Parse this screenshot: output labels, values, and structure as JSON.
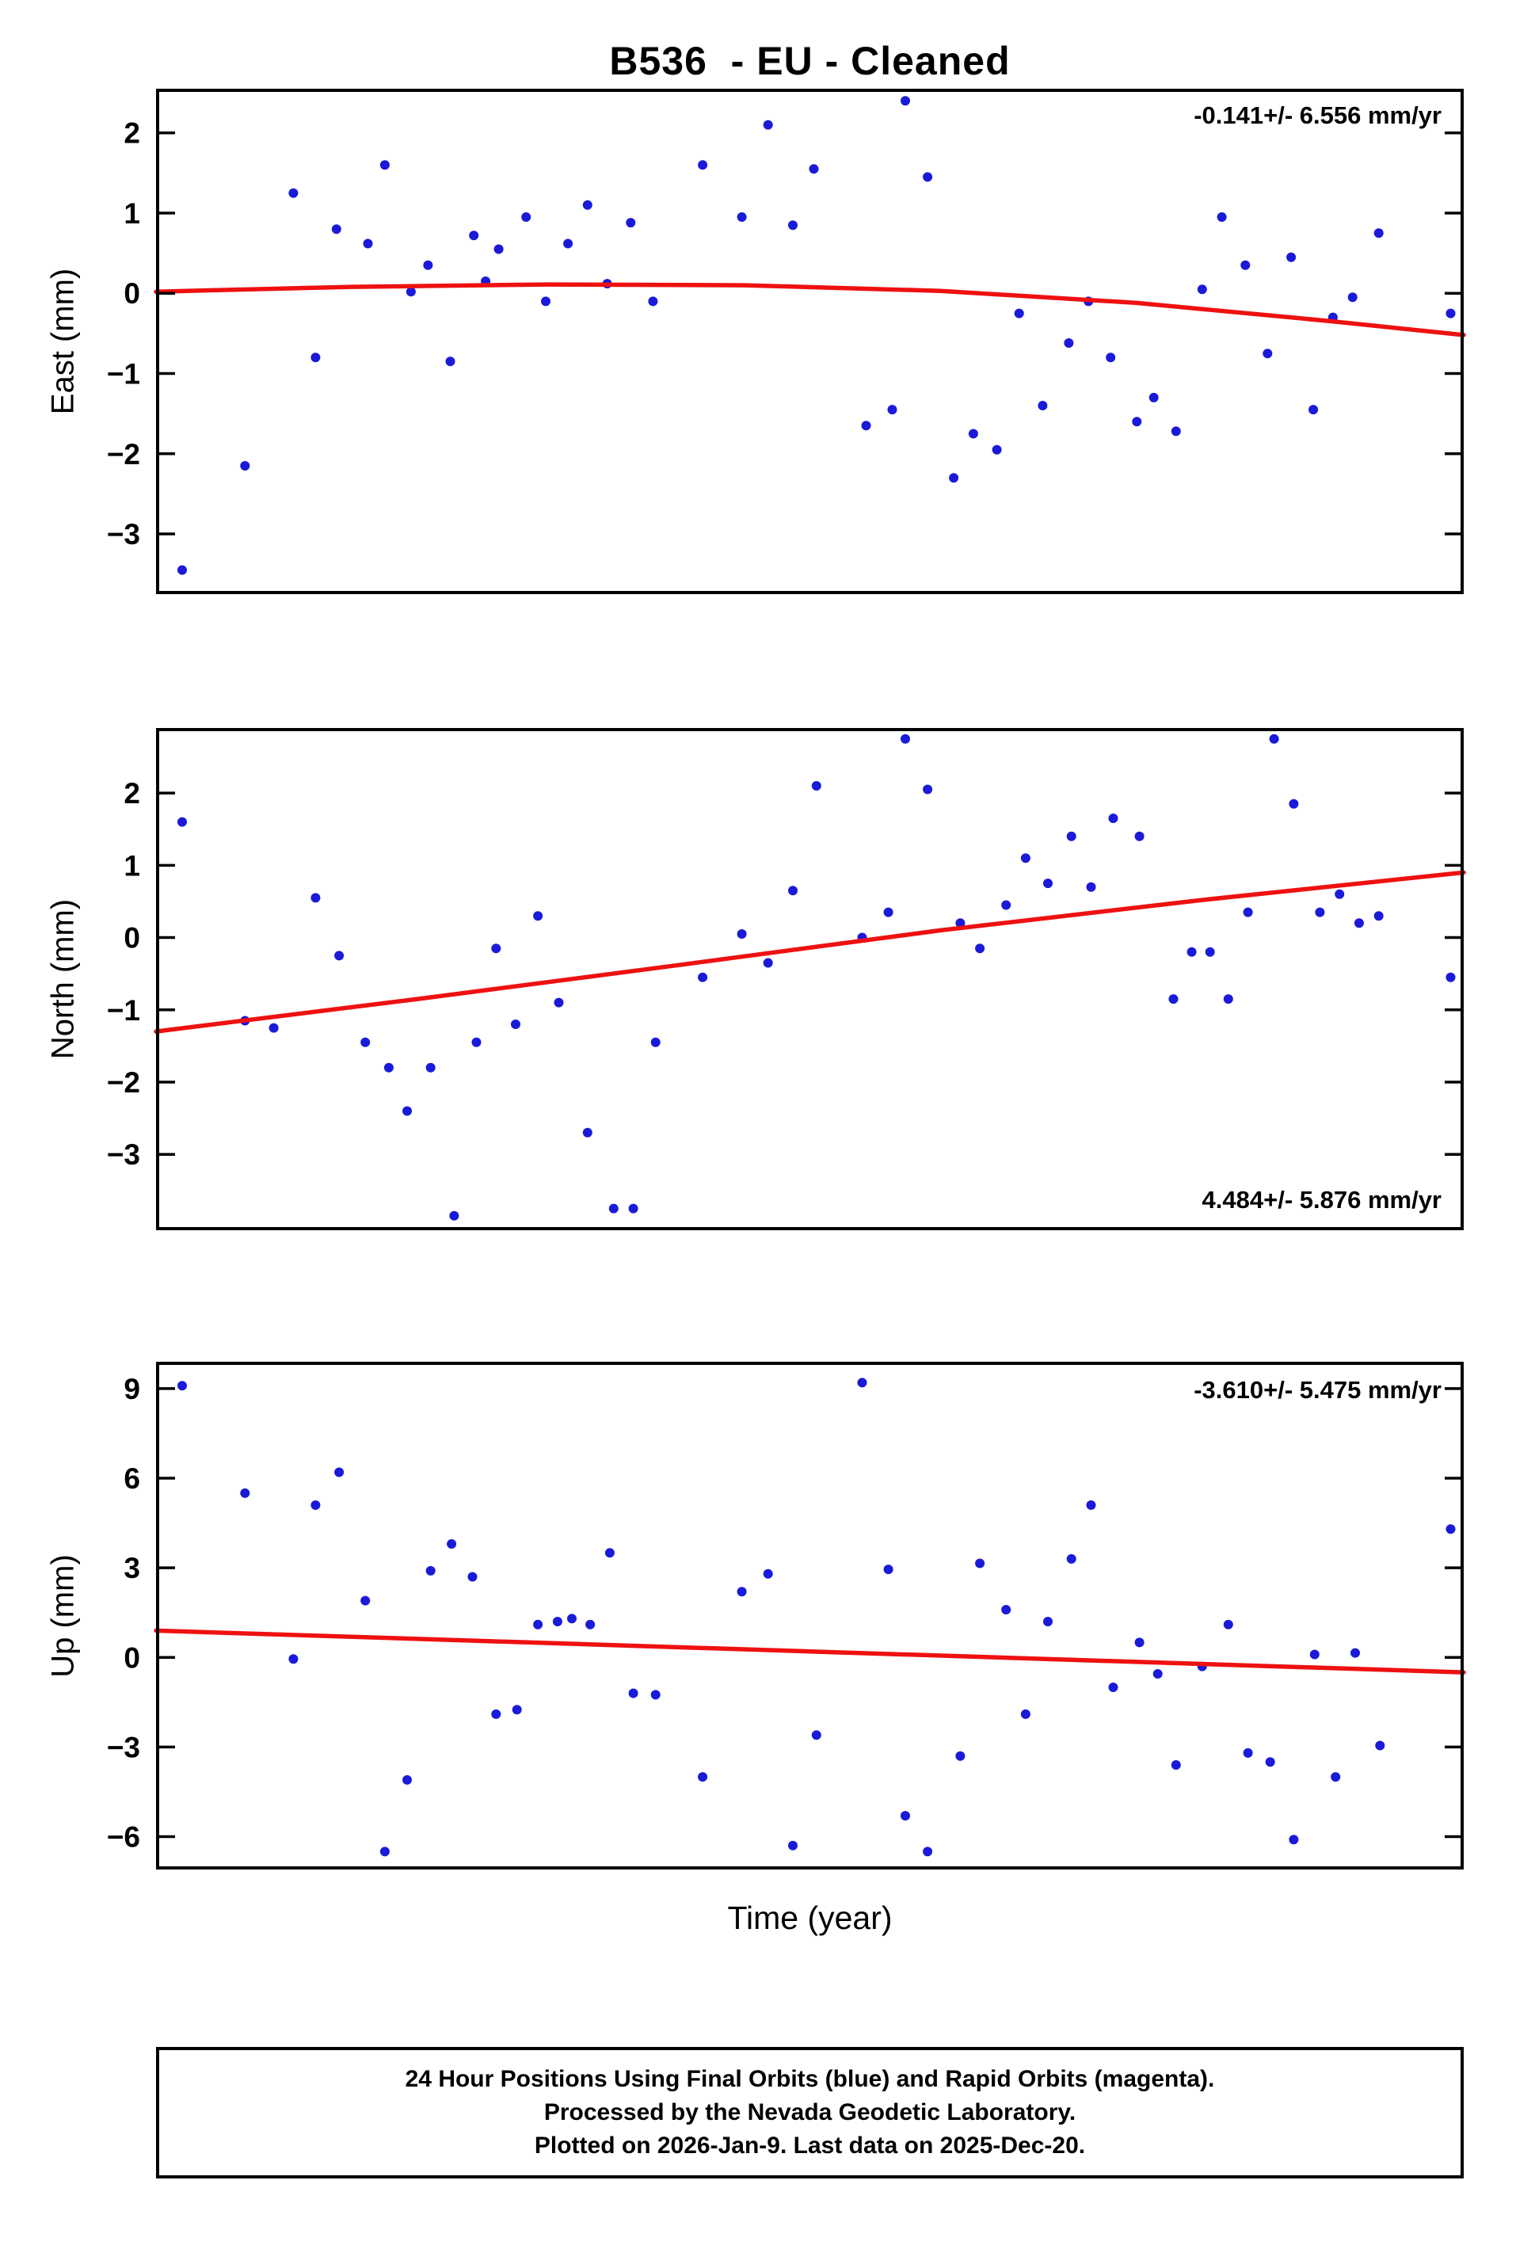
{
  "title": "B536  - EU - Cleaned",
  "xlabel": "Time (year)",
  "footer": {
    "line1": "24 Hour Positions Using Final Orbits (blue) and Rapid Orbits (magenta).",
    "line2": "Processed by the Nevada Geodetic Laboratory.",
    "line3": "Plotted on 2026-Jan-9. Last data on 2025-Dec-20."
  },
  "colors": {
    "points": "#1a1ad9",
    "trend": "#ee1111",
    "frame": "#000000",
    "text": "#000000"
  },
  "chart_data": [
    {
      "type": "scatter",
      "name": "east",
      "ylabel": "East (mm)",
      "annotation": "-0.141+/- 6.556 mm/yr",
      "annotation_pos": "top-right",
      "ylim": [
        -3.75,
        2.55
      ],
      "yticks": [
        2,
        1,
        0,
        -1,
        -2,
        -3
      ],
      "ytick_labels": [
        "2",
        "1",
        "0",
        "−1",
        "−2",
        "−3"
      ],
      "xticks": [],
      "points": [
        [
          0.02,
          -3.45
        ],
        [
          0.068,
          -2.15
        ],
        [
          0.105,
          1.25
        ],
        [
          0.122,
          -0.8
        ],
        [
          0.138,
          0.8
        ],
        [
          0.162,
          0.62
        ],
        [
          0.175,
          1.6
        ],
        [
          0.195,
          0.02
        ],
        [
          0.208,
          0.35
        ],
        [
          0.225,
          -0.85
        ],
        [
          0.243,
          0.72
        ],
        [
          0.252,
          0.15
        ],
        [
          0.262,
          0.55
        ],
        [
          0.283,
          0.95
        ],
        [
          0.298,
          -0.1
        ],
        [
          0.315,
          0.62
        ],
        [
          0.33,
          1.1
        ],
        [
          0.345,
          0.12
        ],
        [
          0.363,
          0.88
        ],
        [
          0.38,
          -0.1
        ],
        [
          0.418,
          1.6
        ],
        [
          0.448,
          0.95
        ],
        [
          0.468,
          2.1
        ],
        [
          0.487,
          0.85
        ],
        [
          0.503,
          1.55
        ],
        [
          0.543,
          -1.65
        ],
        [
          0.563,
          -1.45
        ],
        [
          0.573,
          2.4
        ],
        [
          0.59,
          1.45
        ],
        [
          0.61,
          -2.3
        ],
        [
          0.625,
          -1.75
        ],
        [
          0.643,
          -1.95
        ],
        [
          0.66,
          -0.25
        ],
        [
          0.678,
          -1.4
        ],
        [
          0.698,
          -0.62
        ],
        [
          0.713,
          -0.1
        ],
        [
          0.73,
          -0.8
        ],
        [
          0.75,
          -1.6
        ],
        [
          0.763,
          -1.3
        ],
        [
          0.78,
          -1.72
        ],
        [
          0.8,
          0.05
        ],
        [
          0.815,
          0.95
        ],
        [
          0.833,
          0.35
        ],
        [
          0.85,
          -0.75
        ],
        [
          0.868,
          0.45
        ],
        [
          0.885,
          -1.45
        ],
        [
          0.9,
          -0.3
        ],
        [
          0.915,
          -0.05
        ],
        [
          0.935,
          0.75
        ],
        [
          0.99,
          -0.25
        ]
      ],
      "trend": [
        [
          0.0,
          0.02
        ],
        [
          0.15,
          0.08
        ],
        [
          0.3,
          0.11
        ],
        [
          0.45,
          0.1
        ],
        [
          0.6,
          0.03
        ],
        [
          0.75,
          -0.12
        ],
        [
          0.9,
          -0.35
        ],
        [
          1.0,
          -0.52
        ]
      ]
    },
    {
      "type": "scatter",
      "name": "north",
      "ylabel": "North (mm)",
      "annotation": "4.484+/- 5.876 mm/yr",
      "annotation_pos": "bottom-right",
      "ylim": [
        -4.05,
        2.9
      ],
      "yticks": [
        2,
        1,
        0,
        -1,
        -2,
        -3
      ],
      "ytick_labels": [
        "2",
        "1",
        "0",
        "−1",
        "−2",
        "−3"
      ],
      "xticks": [],
      "points": [
        [
          0.02,
          1.6
        ],
        [
          0.068,
          -1.15
        ],
        [
          0.09,
          -1.25
        ],
        [
          0.122,
          0.55
        ],
        [
          0.14,
          -0.25
        ],
        [
          0.16,
          -1.45
        ],
        [
          0.178,
          -1.8
        ],
        [
          0.192,
          -2.4
        ],
        [
          0.21,
          -1.8
        ],
        [
          0.228,
          -3.85
        ],
        [
          0.245,
          -1.45
        ],
        [
          0.26,
          -0.15
        ],
        [
          0.275,
          -1.2
        ],
        [
          0.292,
          0.3
        ],
        [
          0.308,
          -0.9
        ],
        [
          0.33,
          -2.7
        ],
        [
          0.35,
          -3.75
        ],
        [
          0.365,
          -3.75
        ],
        [
          0.382,
          -1.45
        ],
        [
          0.418,
          -0.55
        ],
        [
          0.448,
          0.05
        ],
        [
          0.468,
          -0.35
        ],
        [
          0.487,
          0.65
        ],
        [
          0.505,
          2.1
        ],
        [
          0.54,
          0.0
        ],
        [
          0.56,
          0.35
        ],
        [
          0.573,
          2.75
        ],
        [
          0.59,
          2.05
        ],
        [
          0.615,
          0.2
        ],
        [
          0.63,
          -0.15
        ],
        [
          0.65,
          0.45
        ],
        [
          0.665,
          1.1
        ],
        [
          0.682,
          0.75
        ],
        [
          0.7,
          1.4
        ],
        [
          0.715,
          0.7
        ],
        [
          0.732,
          1.65
        ],
        [
          0.752,
          1.4
        ],
        [
          0.778,
          -0.85
        ],
        [
          0.792,
          -0.2
        ],
        [
          0.806,
          -0.2
        ],
        [
          0.82,
          -0.85
        ],
        [
          0.835,
          0.35
        ],
        [
          0.855,
          2.75
        ],
        [
          0.87,
          1.85
        ],
        [
          0.89,
          0.35
        ],
        [
          0.905,
          0.6
        ],
        [
          0.92,
          0.2
        ],
        [
          0.935,
          0.3
        ],
        [
          0.99,
          -0.55
        ]
      ],
      "trend": [
        [
          0.0,
          -1.3
        ],
        [
          0.2,
          -0.85
        ],
        [
          0.4,
          -0.38
        ],
        [
          0.6,
          0.1
        ],
        [
          0.8,
          0.52
        ],
        [
          1.0,
          0.9
        ]
      ]
    },
    {
      "type": "scatter",
      "name": "up",
      "ylabel": "Up (mm)",
      "annotation": "-3.610+/- 5.475 mm/yr",
      "annotation_pos": "top-right",
      "ylim": [
        -7.1,
        9.9
      ],
      "yticks": [
        9,
        6,
        3,
        0,
        -3,
        -6
      ],
      "ytick_labels": [
        "9",
        "6",
        "3",
        "0",
        "−3",
        "−6"
      ],
      "xticks": [],
      "points": [
        [
          0.02,
          9.1
        ],
        [
          0.068,
          5.5
        ],
        [
          0.105,
          -0.05
        ],
        [
          0.122,
          5.1
        ],
        [
          0.14,
          6.2
        ],
        [
          0.16,
          1.9
        ],
        [
          0.175,
          -6.5
        ],
        [
          0.192,
          -4.1
        ],
        [
          0.21,
          2.9
        ],
        [
          0.226,
          3.8
        ],
        [
          0.242,
          2.7
        ],
        [
          0.26,
          -1.9
        ],
        [
          0.276,
          -1.75
        ],
        [
          0.292,
          1.1
        ],
        [
          0.307,
          1.2
        ],
        [
          0.318,
          1.3
        ],
        [
          0.332,
          1.1
        ],
        [
          0.347,
          3.5
        ],
        [
          0.365,
          -1.2
        ],
        [
          0.382,
          -1.25
        ],
        [
          0.418,
          -4.0
        ],
        [
          0.448,
          2.2
        ],
        [
          0.468,
          2.8
        ],
        [
          0.487,
          -6.3
        ],
        [
          0.505,
          -2.6
        ],
        [
          0.54,
          9.2
        ],
        [
          0.56,
          2.95
        ],
        [
          0.573,
          -5.3
        ],
        [
          0.59,
          -6.5
        ],
        [
          0.615,
          -3.3
        ],
        [
          0.63,
          3.15
        ],
        [
          0.65,
          1.6
        ],
        [
          0.665,
          -1.9
        ],
        [
          0.682,
          1.2
        ],
        [
          0.7,
          3.3
        ],
        [
          0.715,
          5.1
        ],
        [
          0.732,
          -1.0
        ],
        [
          0.752,
          0.5
        ],
        [
          0.766,
          -0.55
        ],
        [
          0.78,
          -3.6
        ],
        [
          0.8,
          -0.3
        ],
        [
          0.82,
          1.1
        ],
        [
          0.835,
          -3.2
        ],
        [
          0.852,
          -3.5
        ],
        [
          0.87,
          -6.1
        ],
        [
          0.886,
          0.1
        ],
        [
          0.902,
          -4.0
        ],
        [
          0.917,
          0.15
        ],
        [
          0.936,
          -2.95
        ],
        [
          0.99,
          4.3
        ]
      ],
      "trend": [
        [
          0.0,
          0.9
        ],
        [
          0.25,
          0.55
        ],
        [
          0.5,
          0.2
        ],
        [
          0.75,
          -0.15
        ],
        [
          1.0,
          -0.5
        ]
      ]
    }
  ]
}
